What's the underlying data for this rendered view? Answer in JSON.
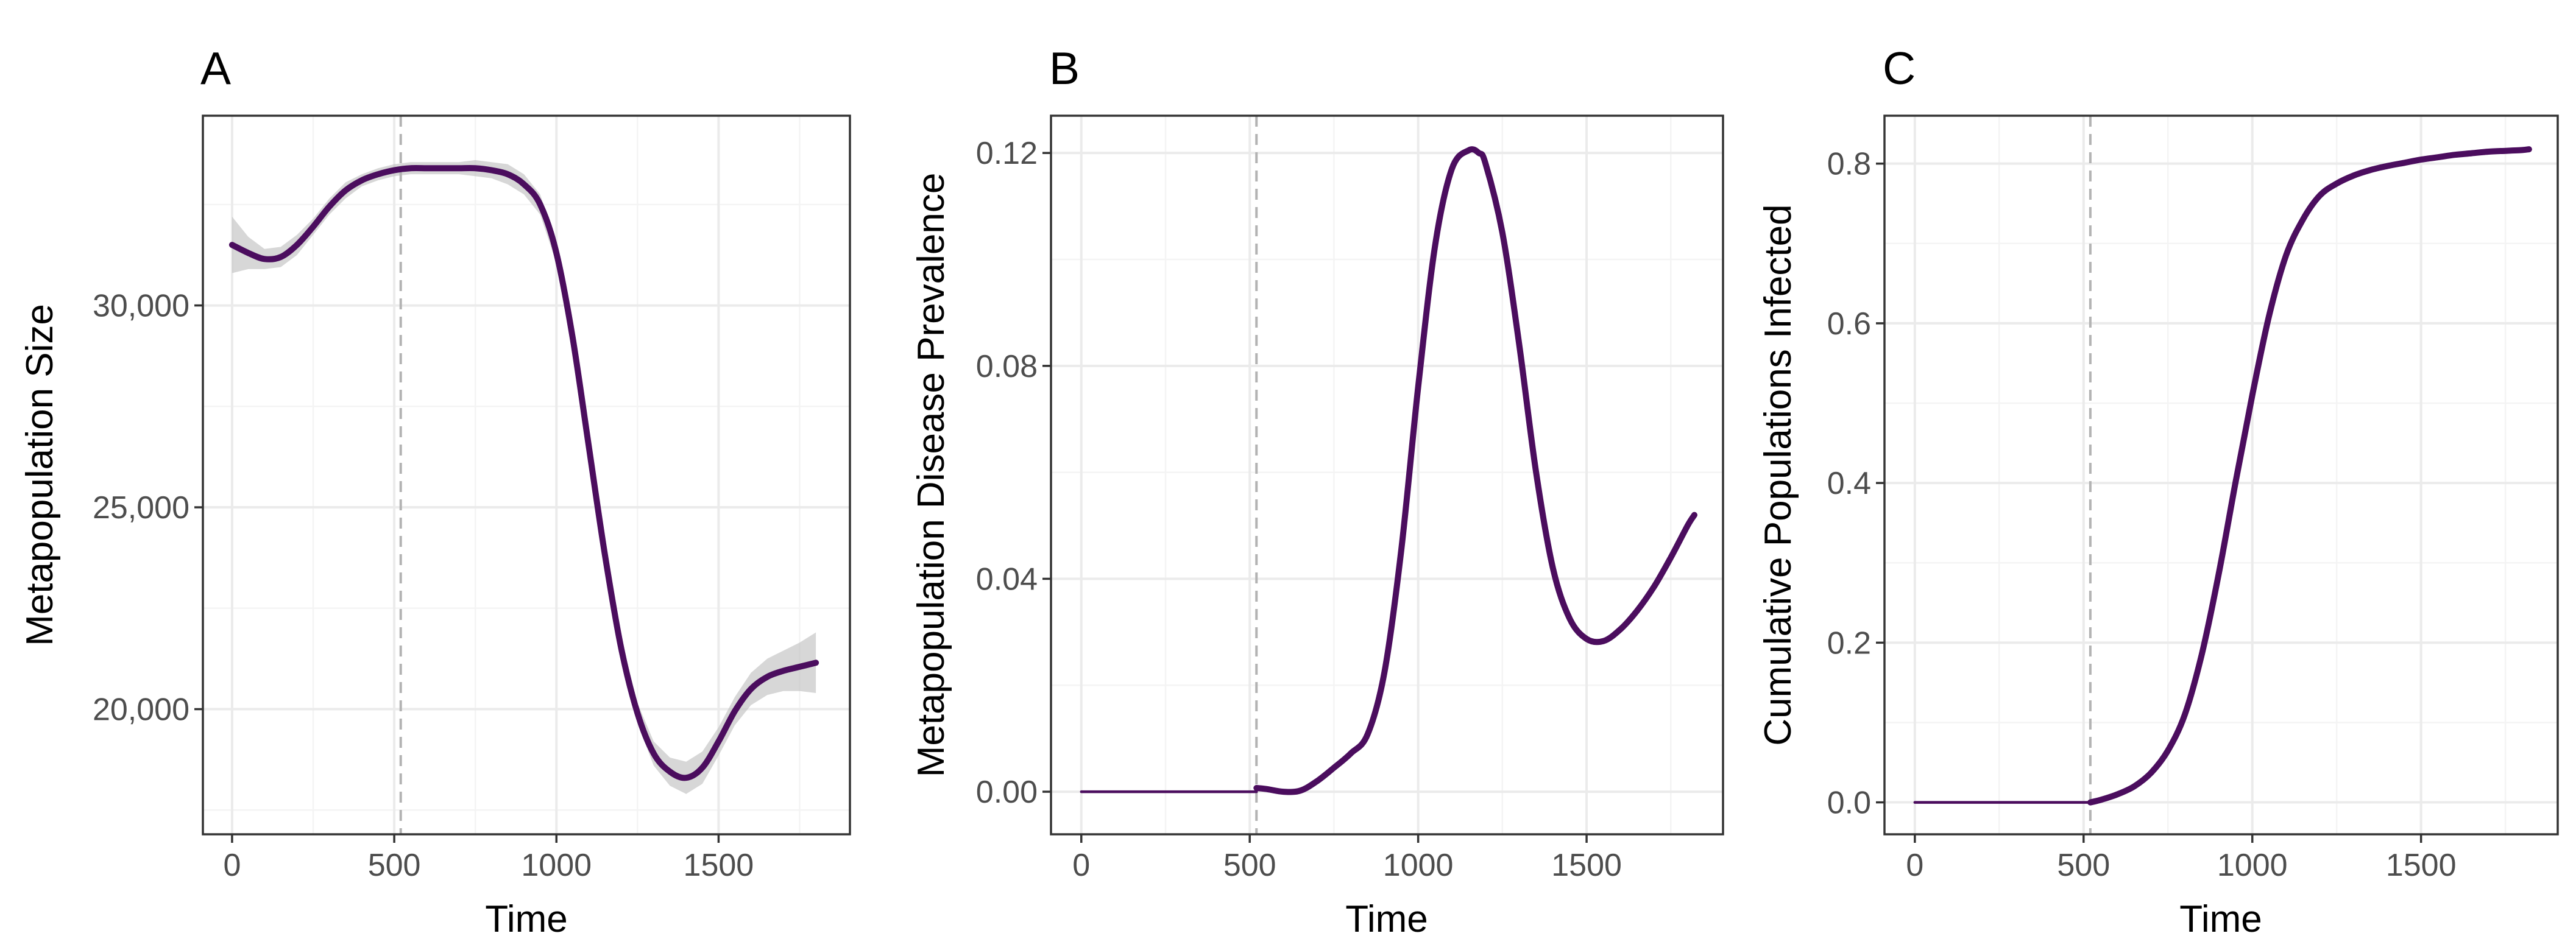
{
  "colors": {
    "line": "#4b0d5e",
    "ribbon": "#bdbdbd",
    "vline": "#b3b3b3"
  },
  "chart_data": [
    {
      "panel": "A",
      "type": "line",
      "title": "",
      "xlabel": "Time",
      "ylabel": "Metapopulation Size",
      "xlim": [
        -90,
        1905
      ],
      "ylim": [
        16900,
        34700
      ],
      "xticks": [
        0,
        500,
        1000,
        1500
      ],
      "xtick_labels": [
        "0",
        "500",
        "1000",
        "1500"
      ],
      "yticks": [
        20000,
        25000,
        30000
      ],
      "ytick_labels": [
        "20,000",
        "25,000",
        "30,000"
      ],
      "vline_x": 520,
      "grid": true,
      "series": [
        {
          "name": "smoothed",
          "x": [
            0,
            50,
            100,
            150,
            200,
            250,
            300,
            350,
            400,
            450,
            500,
            550,
            600,
            650,
            700,
            750,
            800,
            850,
            900,
            950,
            1000,
            1050,
            1100,
            1150,
            1200,
            1250,
            1300,
            1350,
            1400,
            1450,
            1500,
            1550,
            1600,
            1650,
            1700,
            1750,
            1800
          ],
          "y": [
            31500,
            31300,
            31150,
            31200,
            31500,
            31950,
            32450,
            32850,
            33100,
            33250,
            33350,
            33400,
            33400,
            33400,
            33400,
            33400,
            33350,
            33250,
            33000,
            32500,
            31300,
            29200,
            26500,
            23800,
            21500,
            19900,
            18900,
            18450,
            18300,
            18550,
            19200,
            19950,
            20500,
            20800,
            20950,
            21050,
            21150
          ],
          "lower": [
            30800,
            30900,
            30900,
            30950,
            31250,
            31750,
            32250,
            32650,
            32950,
            33100,
            33200,
            33250,
            33250,
            33250,
            33250,
            33200,
            33150,
            33000,
            32750,
            32250,
            31050,
            28950,
            26250,
            23550,
            21250,
            19650,
            18600,
            18100,
            17900,
            18150,
            18850,
            19600,
            20100,
            20350,
            20450,
            20450,
            20400
          ],
          "upper": [
            32200,
            31700,
            31400,
            31450,
            31750,
            32150,
            32650,
            33050,
            33250,
            33400,
            33500,
            33550,
            33550,
            33550,
            33550,
            33600,
            33550,
            33500,
            33250,
            32750,
            31550,
            29450,
            26750,
            24050,
            21750,
            20150,
            19200,
            18800,
            18700,
            18950,
            19550,
            20300,
            20900,
            21250,
            21450,
            21650,
            21900
          ]
        }
      ]
    },
    {
      "panel": "B",
      "type": "line",
      "title": "",
      "xlabel": "Time",
      "ylabel": "Metapopulation Disease Prevalence",
      "xlim": [
        -90,
        1905
      ],
      "ylim": [
        -0.008,
        0.127
      ],
      "xticks": [
        0,
        500,
        1000,
        1500
      ],
      "xtick_labels": [
        "0",
        "500",
        "1000",
        "1500"
      ],
      "yticks": [
        0.0,
        0.04,
        0.08,
        0.12
      ],
      "ytick_labels": [
        "0.00",
        "0.04",
        "0.08",
        "0.12"
      ],
      "vline_x": 520,
      "grid": true,
      "series": [
        {
          "name": "pre-introduction",
          "x": [
            0,
            520
          ],
          "y": [
            0.0,
            0.0
          ]
        },
        {
          "name": "smoothed",
          "x": [
            520,
            550,
            600,
            650,
            700,
            750,
            800,
            850,
            900,
            950,
            1000,
            1050,
            1100,
            1150,
            1180,
            1200,
            1250,
            1300,
            1350,
            1400,
            1450,
            1500,
            1550,
            1600,
            1650,
            1700,
            1750,
            1800,
            1820
          ],
          "y": [
            0.0007,
            0.0005,
            0.0,
            0.0002,
            0.002,
            0.0045,
            0.0072,
            0.0108,
            0.0225,
            0.0455,
            0.076,
            0.1025,
            0.117,
            0.1205,
            0.12,
            0.118,
            0.105,
            0.084,
            0.06,
            0.042,
            0.0325,
            0.0287,
            0.0283,
            0.0305,
            0.034,
            0.0385,
            0.044,
            0.05,
            0.052
          ]
        }
      ]
    },
    {
      "panel": "C",
      "type": "line",
      "title": "",
      "xlabel": "Time",
      "ylabel": "Cumulative Populations Infected",
      "xlim": [
        -90,
        1905
      ],
      "ylim": [
        -0.04,
        0.86
      ],
      "xticks": [
        0,
        500,
        1000,
        1500
      ],
      "xtick_labels": [
        "0",
        "500",
        "1000",
        "1500"
      ],
      "yticks": [
        0.0,
        0.2,
        0.4,
        0.6,
        0.8
      ],
      "ytick_labels": [
        "0.0",
        "0.2",
        "0.4",
        "0.6",
        "0.8"
      ],
      "vline_x": 520,
      "grid": true,
      "series": [
        {
          "name": "pre-introduction",
          "x": [
            0,
            520
          ],
          "y": [
            0.0,
            0.0
          ]
        },
        {
          "name": "smoothed",
          "x": [
            520,
            550,
            600,
            650,
            700,
            750,
            800,
            850,
            900,
            950,
            1000,
            1050,
            1100,
            1150,
            1200,
            1250,
            1300,
            1350,
            1400,
            1450,
            1500,
            1550,
            1600,
            1650,
            1700,
            1750,
            1800,
            1820
          ],
          "y": [
            0.0,
            0.003,
            0.01,
            0.02,
            0.037,
            0.065,
            0.11,
            0.185,
            0.285,
            0.4,
            0.51,
            0.61,
            0.685,
            0.73,
            0.76,
            0.775,
            0.785,
            0.792,
            0.797,
            0.801,
            0.805,
            0.808,
            0.811,
            0.813,
            0.815,
            0.816,
            0.817,
            0.818
          ]
        }
      ]
    }
  ]
}
